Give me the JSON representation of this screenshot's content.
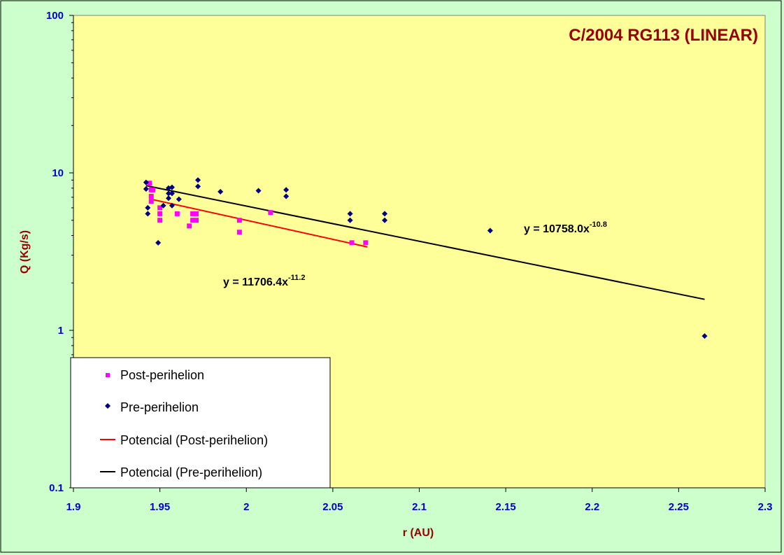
{
  "chart_data": {
    "type": "scatter",
    "title": "C/2004 RG113  (LINEAR)",
    "xlabel": "r (AU)",
    "ylabel": "Q (Kg/s)",
    "xlim": [
      1.9,
      2.3
    ],
    "ylim": [
      0.1,
      100
    ],
    "yscale": "log",
    "x_ticks": [
      "1.9",
      "1.95",
      "2",
      "2.05",
      "2.1",
      "2.15",
      "2.2",
      "2.25",
      "2.3"
    ],
    "y_ticks": [
      "0.1",
      "1",
      "10",
      "100"
    ],
    "grid": false,
    "legend_position": "bottom-left",
    "series": [
      {
        "name": "Post-perihelion",
        "marker": "square",
        "color": "#ff00ff",
        "points": [
          [
            1.944,
            8.6
          ],
          [
            1.945,
            7.8
          ],
          [
            1.946,
            7.8
          ],
          [
            1.945,
            7.1
          ],
          [
            1.945,
            6.6
          ],
          [
            1.95,
            6.0
          ],
          [
            1.95,
            5.5
          ],
          [
            1.95,
            5.0
          ],
          [
            1.96,
            5.5
          ],
          [
            1.967,
            4.6
          ],
          [
            1.969,
            5.0
          ],
          [
            1.969,
            5.5
          ],
          [
            1.971,
            5.0
          ],
          [
            1.971,
            5.5
          ],
          [
            1.996,
            5.0
          ],
          [
            1.996,
            4.2
          ],
          [
            2.014,
            5.6
          ],
          [
            2.061,
            3.6
          ],
          [
            2.069,
            3.6
          ]
        ]
      },
      {
        "name": "Pre-perihelion",
        "marker": "diamond",
        "color": "#000080",
        "points": [
          [
            1.942,
            8.7
          ],
          [
            1.942,
            7.9
          ],
          [
            1.943,
            6.0
          ],
          [
            1.943,
            5.5
          ],
          [
            1.949,
            3.6
          ],
          [
            1.952,
            6.2
          ],
          [
            1.955,
            8.0
          ],
          [
            1.955,
            7.4
          ],
          [
            1.955,
            6.9
          ],
          [
            1.957,
            8.1
          ],
          [
            1.957,
            7.4
          ],
          [
            1.957,
            6.2
          ],
          [
            1.961,
            6.8
          ],
          [
            1.972,
            9.0
          ],
          [
            1.972,
            8.2
          ],
          [
            1.985,
            7.6
          ],
          [
            2.007,
            7.7
          ],
          [
            2.023,
            7.8
          ],
          [
            2.023,
            7.1
          ],
          [
            2.06,
            5.5
          ],
          [
            2.06,
            5.0
          ],
          [
            2.08,
            5.5
          ],
          [
            2.08,
            5.0
          ],
          [
            2.141,
            4.3
          ],
          [
            2.265,
            0.92
          ]
        ]
      },
      {
        "name": "Potencial (Post-perihelion)",
        "type": "trendline",
        "color": "#ff0000",
        "equation_prefix": "y = 11706.4x",
        "equation_exponent": "-11.2",
        "coefficient": 11706.4,
        "exponent": -11.2,
        "x_range": [
          1.945,
          2.07
        ]
      },
      {
        "name": "Potencial (Pre-perihelion)",
        "type": "trendline",
        "color": "#000000",
        "equation_prefix": "y = 10758.0x",
        "equation_exponent": "-10.8",
        "coefficient": 10758.0,
        "exponent": -10.8,
        "x_range": [
          1.942,
          2.265
        ]
      }
    ]
  }
}
